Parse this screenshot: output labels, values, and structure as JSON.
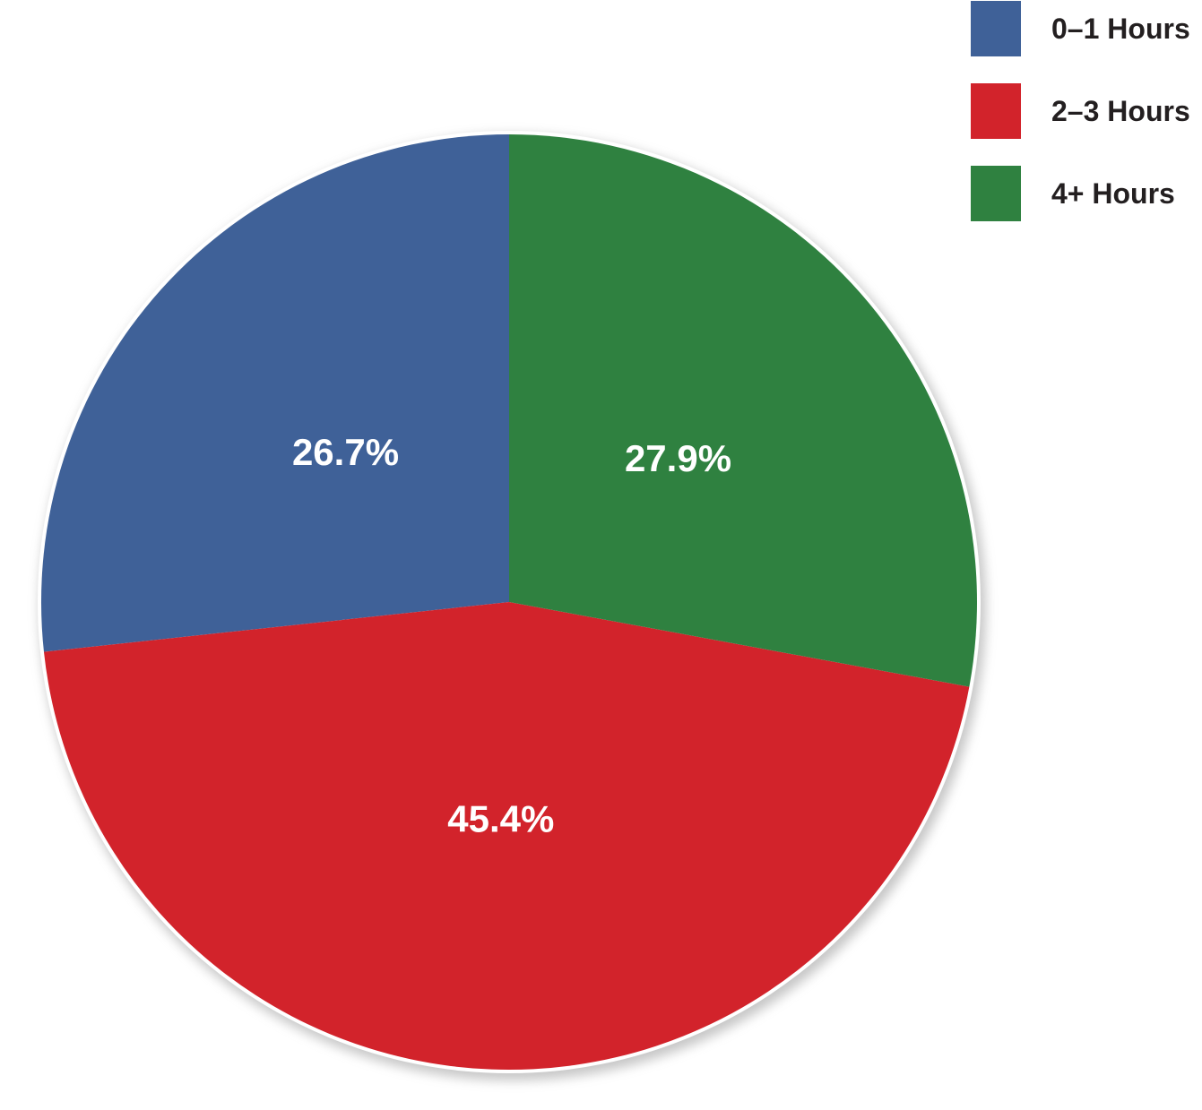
{
  "chart_data": {
    "type": "pie",
    "title": "",
    "start_angle_deg": 0,
    "direction": "counterclockwise",
    "slices": [
      {
        "label": "0–1 Hours",
        "value": 26.7,
        "display": "26.7%",
        "color": "#3f6198"
      },
      {
        "label": "2–3 Hours",
        "value": 45.4,
        "display": "45.4%",
        "color": "#d2232b"
      },
      {
        "label": "4+ Hours",
        "value": 27.9,
        "display": "27.9%",
        "color": "#2f8140"
      }
    ],
    "legend": {
      "placement": "top-right",
      "items": [
        "0–1 Hours",
        "2–3 Hours",
        "4+ Hours"
      ]
    }
  }
}
